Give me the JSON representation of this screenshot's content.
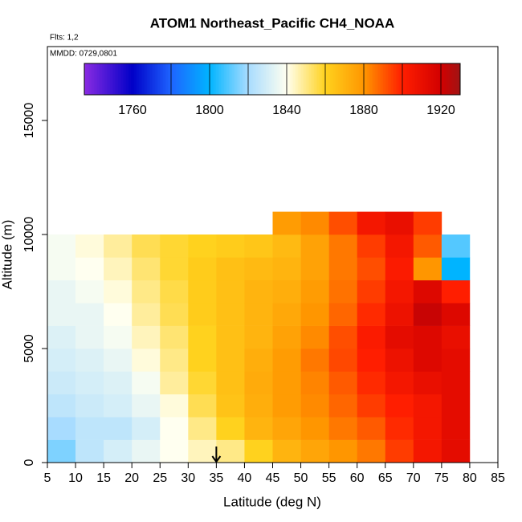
{
  "chart_data": {
    "type": "heatmap",
    "title": "ATOM1 Northeast_Pacific CH4_NOAA",
    "annotations": [
      "Flts: 1,2",
      "MMDD: 0729,0801"
    ],
    "x_label": "Latitude (deg N)",
    "y_label": "Altitude (m)",
    "xlim": [
      5,
      85
    ],
    "ylim": [
      0,
      18240
    ],
    "xticks": [
      5,
      10,
      15,
      20,
      25,
      30,
      35,
      40,
      45,
      50,
      55,
      60,
      65,
      70,
      75,
      80,
      85
    ],
    "yticks": [
      0,
      5000,
      10000,
      15000
    ],
    "x_edges": [
      5,
      10,
      15,
      20,
      25,
      30,
      35,
      40,
      45,
      50,
      55,
      60,
      65,
      70,
      75,
      80
    ],
    "y_edges": [
      0,
      1000,
      2000,
      3000,
      4000,
      5000,
      6000,
      7000,
      8000,
      9000,
      10000,
      11000
    ],
    "z": [
      [
        1815,
        1825,
        1830,
        1835,
        1840,
        1845,
        1850,
        1860,
        1870,
        1875,
        1880,
        1885,
        1895,
        1905,
        1912
      ],
      [
        1820,
        1825,
        1825,
        1830,
        1840,
        1850,
        1860,
        1870,
        1875,
        1880,
        1885,
        1890,
        1898,
        1905,
        1912
      ],
      [
        1825,
        1828,
        1830,
        1835,
        1842,
        1855,
        1865,
        1872,
        1878,
        1882,
        1888,
        1895,
        1900,
        1905,
        1912
      ],
      [
        1828,
        1830,
        1832,
        1838,
        1848,
        1858,
        1866,
        1873,
        1878,
        1883,
        1890,
        1898,
        1905,
        1910,
        1912
      ],
      [
        1830,
        1832,
        1835,
        1842,
        1850,
        1860,
        1866,
        1872,
        1878,
        1885,
        1893,
        1900,
        1908,
        1915,
        1912
      ],
      [
        1832,
        1835,
        1838,
        1845,
        1852,
        1860,
        1866,
        1870,
        1876,
        1882,
        1892,
        1902,
        1912,
        1915,
        1910
      ],
      [
        1835,
        1835,
        1840,
        1848,
        1855,
        1862,
        1866,
        1870,
        1874,
        1880,
        1888,
        1898,
        1908,
        1922,
        1915
      ],
      [
        1835,
        1838,
        1842,
        1850,
        1856,
        1862,
        1866,
        1870,
        1872,
        1878,
        1886,
        1895,
        1905,
        1915,
        1900
      ],
      [
        1838,
        1840,
        1845,
        1852,
        1858,
        1862,
        1866,
        1868,
        1870,
        1876,
        1885,
        1892,
        1902,
        1880,
        1800
      ],
      [
        1838,
        1842,
        1848,
        1855,
        1858,
        1860,
        1862,
        1864,
        1868,
        1876,
        1885,
        1895,
        1905,
        1890,
        1810
      ],
      [
        null,
        null,
        null,
        null,
        null,
        null,
        null,
        null,
        1878,
        1882,
        1892,
        1905,
        1910,
        1895,
        null
      ]
    ],
    "clim": [
      1735,
      1930
    ],
    "cticks": [
      1760,
      1800,
      1840,
      1880,
      1920
    ],
    "cdividers": [
      1780,
      1800,
      1820,
      1840,
      1860,
      1880,
      1900,
      1920
    ],
    "colorscale": [
      [
        1735,
        "#8a2be2"
      ],
      [
        1760,
        "#0000c8"
      ],
      [
        1780,
        "#1e64ff"
      ],
      [
        1800,
        "#00b4ff"
      ],
      [
        1820,
        "#a8dcff"
      ],
      [
        1840,
        "#fffff0"
      ],
      [
        1860,
        "#ffd21e"
      ],
      [
        1880,
        "#ff9600"
      ],
      [
        1900,
        "#ff1e00"
      ],
      [
        1920,
        "#d20000"
      ],
      [
        1930,
        "#a01414"
      ]
    ],
    "marker_lat": 35
  }
}
